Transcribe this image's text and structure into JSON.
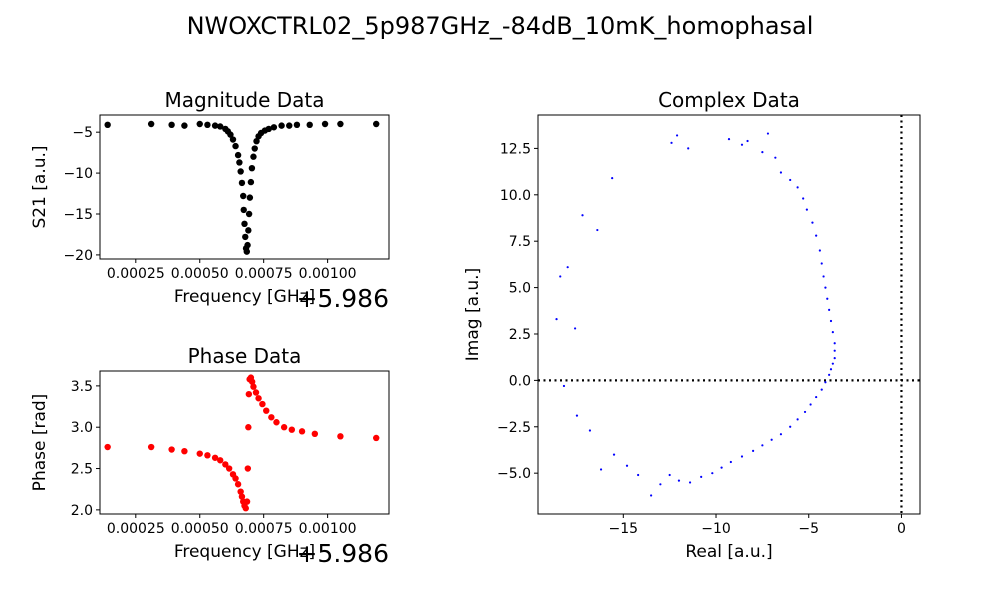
{
  "title": "NWOXCTRL02_5p987GHz_-84dB_10mK_homophasal",
  "chart_data": [
    {
      "id": "magnitude",
      "type": "scatter",
      "title": "Magnitude Data",
      "xlabel": "Frequency [GHz]",
      "ylabel": "S21 [a.u.]",
      "offset_label": "+5.986",
      "xlim": [
        0.00011,
        0.00124
      ],
      "ylim": [
        -20.5,
        -2.9
      ],
      "xticks": [
        0.00025,
        0.0005,
        0.00075,
        0.001
      ],
      "xtick_labels": [
        "0.00025",
        "0.00050",
        "0.00075",
        "0.00100"
      ],
      "yticks": [
        -5,
        -10,
        -15,
        -20
      ],
      "ytick_labels": [
        "−5",
        "−10",
        "−15",
        "−20"
      ],
      "marker_color": "#000000",
      "series": [
        {
          "x": [
            0.00014,
            0.00031,
            0.00039,
            0.00044,
            0.0005,
            0.00053,
            0.00056,
            0.00058,
            0.0006,
            0.00061,
            0.00062,
            0.00063,
            0.00064,
            0.00065,
            0.000655,
            0.00066,
            0.000665,
            0.00067,
            0.000672,
            0.000675,
            0.000678,
            0.000681,
            0.000684,
            0.000687,
            0.00069,
            0.000693,
            0.000696,
            0.0007,
            0.000704,
            0.00071,
            0.000715,
            0.000722,
            0.00073,
            0.00074,
            0.000755,
            0.00077,
            0.00079,
            0.00082,
            0.00085,
            0.00088,
            0.00093,
            0.00099,
            0.00105,
            0.00119
          ],
          "y": [
            -4.1,
            -4.0,
            -4.1,
            -4.2,
            -4.0,
            -4.1,
            -4.2,
            -4.3,
            -4.6,
            -4.9,
            -5.3,
            -5.9,
            -6.7,
            -7.8,
            -8.7,
            -9.8,
            -11.2,
            -12.8,
            -14.5,
            -16.2,
            -17.8,
            -19.2,
            -19.6,
            -18.8,
            -17.0,
            -15.0,
            -13.0,
            -11.1,
            -9.4,
            -8.0,
            -7.0,
            -6.1,
            -5.5,
            -5.1,
            -4.8,
            -4.6,
            -4.4,
            -4.2,
            -4.2,
            -4.1,
            -4.1,
            -4.0,
            -4.0,
            -4.0
          ]
        }
      ]
    },
    {
      "id": "phase",
      "type": "scatter",
      "title": "Phase Data",
      "xlabel": "Frequency [GHz]",
      "ylabel": "Phase [rad]",
      "offset_label": "+5.986",
      "xlim": [
        0.00011,
        0.00124
      ],
      "ylim": [
        1.95,
        3.68
      ],
      "xticks": [
        0.00025,
        0.0005,
        0.00075,
        0.001
      ],
      "xtick_labels": [
        "0.00025",
        "0.00050",
        "0.00075",
        "0.00100"
      ],
      "yticks": [
        2.0,
        2.5,
        3.0,
        3.5
      ],
      "ytick_labels": [
        "2.0",
        "2.5",
        "3.0",
        "3.5"
      ],
      "marker_color": "#ff0000",
      "series": [
        {
          "x": [
            0.00014,
            0.00031,
            0.00039,
            0.00044,
            0.0005,
            0.00053,
            0.00056,
            0.00058,
            0.0006,
            0.000615,
            0.00063,
            0.00064,
            0.00065,
            0.00066,
            0.000665,
            0.00067,
            0.000675,
            0.00068,
            0.000685,
            0.000688,
            0.00069,
            0.000692,
            0.000695,
            0.0007,
            0.000705,
            0.00071,
            0.00072,
            0.00073,
            0.000745,
            0.00076,
            0.00078,
            0.0008,
            0.00083,
            0.00086,
            0.0009,
            0.00095,
            0.00105,
            0.00119
          ],
          "y": [
            2.76,
            2.76,
            2.73,
            2.71,
            2.68,
            2.66,
            2.63,
            2.6,
            2.55,
            2.5,
            2.43,
            2.38,
            2.31,
            2.22,
            2.16,
            2.1,
            2.05,
            2.02,
            2.1,
            2.5,
            3.0,
            3.4,
            3.58,
            3.6,
            3.55,
            3.49,
            3.42,
            3.35,
            3.28,
            3.2,
            3.12,
            3.06,
            3.0,
            2.97,
            2.95,
            2.92,
            2.89,
            2.87
          ]
        }
      ]
    },
    {
      "id": "complex",
      "type": "scatter",
      "title": "Complex Data",
      "xlabel": "Real [a.u.]",
      "ylabel": "Imag [a.u.]",
      "xlim": [
        -19.6,
        1.0
      ],
      "ylim": [
        -7.2,
        14.3
      ],
      "xticks": [
        -15,
        -10,
        -5,
        0
      ],
      "xtick_labels": [
        "−15",
        "−10",
        "−5",
        "0"
      ],
      "yticks": [
        -5.0,
        -2.5,
        0.0,
        2.5,
        5.0,
        7.5,
        10.0,
        12.5
      ],
      "ytick_labels": [
        "−5.0",
        "−2.5",
        "0.0",
        "2.5",
        "5.0",
        "7.5",
        "10.0",
        "12.5"
      ],
      "marker_color": "#0000ff",
      "reference_lines": {
        "x": 0,
        "y": 0,
        "style": "dotted",
        "color": "#000000"
      },
      "series": [
        {
          "x": [
            -12.4,
            -12.1,
            -11.5,
            -9.3,
            -8.6,
            -8.3,
            -7.5,
            -7.2,
            -6.8,
            -6.5,
            -6.0,
            -5.6,
            -5.3,
            -5.1,
            -4.8,
            -4.6,
            -4.4,
            -4.3,
            -4.2,
            -4.1,
            -4.0,
            -3.9,
            -3.8,
            -3.7,
            -3.6,
            -3.6,
            -3.6,
            -3.7,
            -3.8,
            -3.9,
            -4.1,
            -4.3,
            -4.6,
            -4.9,
            -5.2,
            -5.6,
            -6.0,
            -6.5,
            -7.0,
            -7.5,
            -8.0,
            -8.6,
            -9.2,
            -9.7,
            -10.2,
            -10.8,
            -11.4,
            -12.0,
            -12.5,
            -13.0,
            -13.5,
            -14.2,
            -14.8,
            -15.5,
            -16.2,
            -16.8,
            -17.5,
            -18.2,
            -18.6,
            -18.4,
            -18.0,
            -17.6,
            -17.2,
            -16.4,
            -15.6
          ],
          "y": [
            12.8,
            13.2,
            12.5,
            13.0,
            12.7,
            12.9,
            12.3,
            13.3,
            12.0,
            11.2,
            10.8,
            10.4,
            9.8,
            9.2,
            8.5,
            7.8,
            7.0,
            6.3,
            5.6,
            5.0,
            4.4,
            3.8,
            3.2,
            2.6,
            2.0,
            1.6,
            1.2,
            0.9,
            0.6,
            0.3,
            -0.1,
            -0.5,
            -0.9,
            -1.3,
            -1.7,
            -2.1,
            -2.5,
            -2.9,
            -3.2,
            -3.5,
            -3.8,
            -4.1,
            -4.4,
            -4.7,
            -5.0,
            -5.2,
            -5.5,
            -5.4,
            -5.1,
            -5.6,
            -6.2,
            -5.1,
            -4.6,
            -4.0,
            -4.8,
            -2.7,
            -1.9,
            -0.3,
            3.3,
            5.6,
            6.1,
            2.8,
            8.9,
            8.1,
            10.9
          ]
        }
      ]
    }
  ]
}
